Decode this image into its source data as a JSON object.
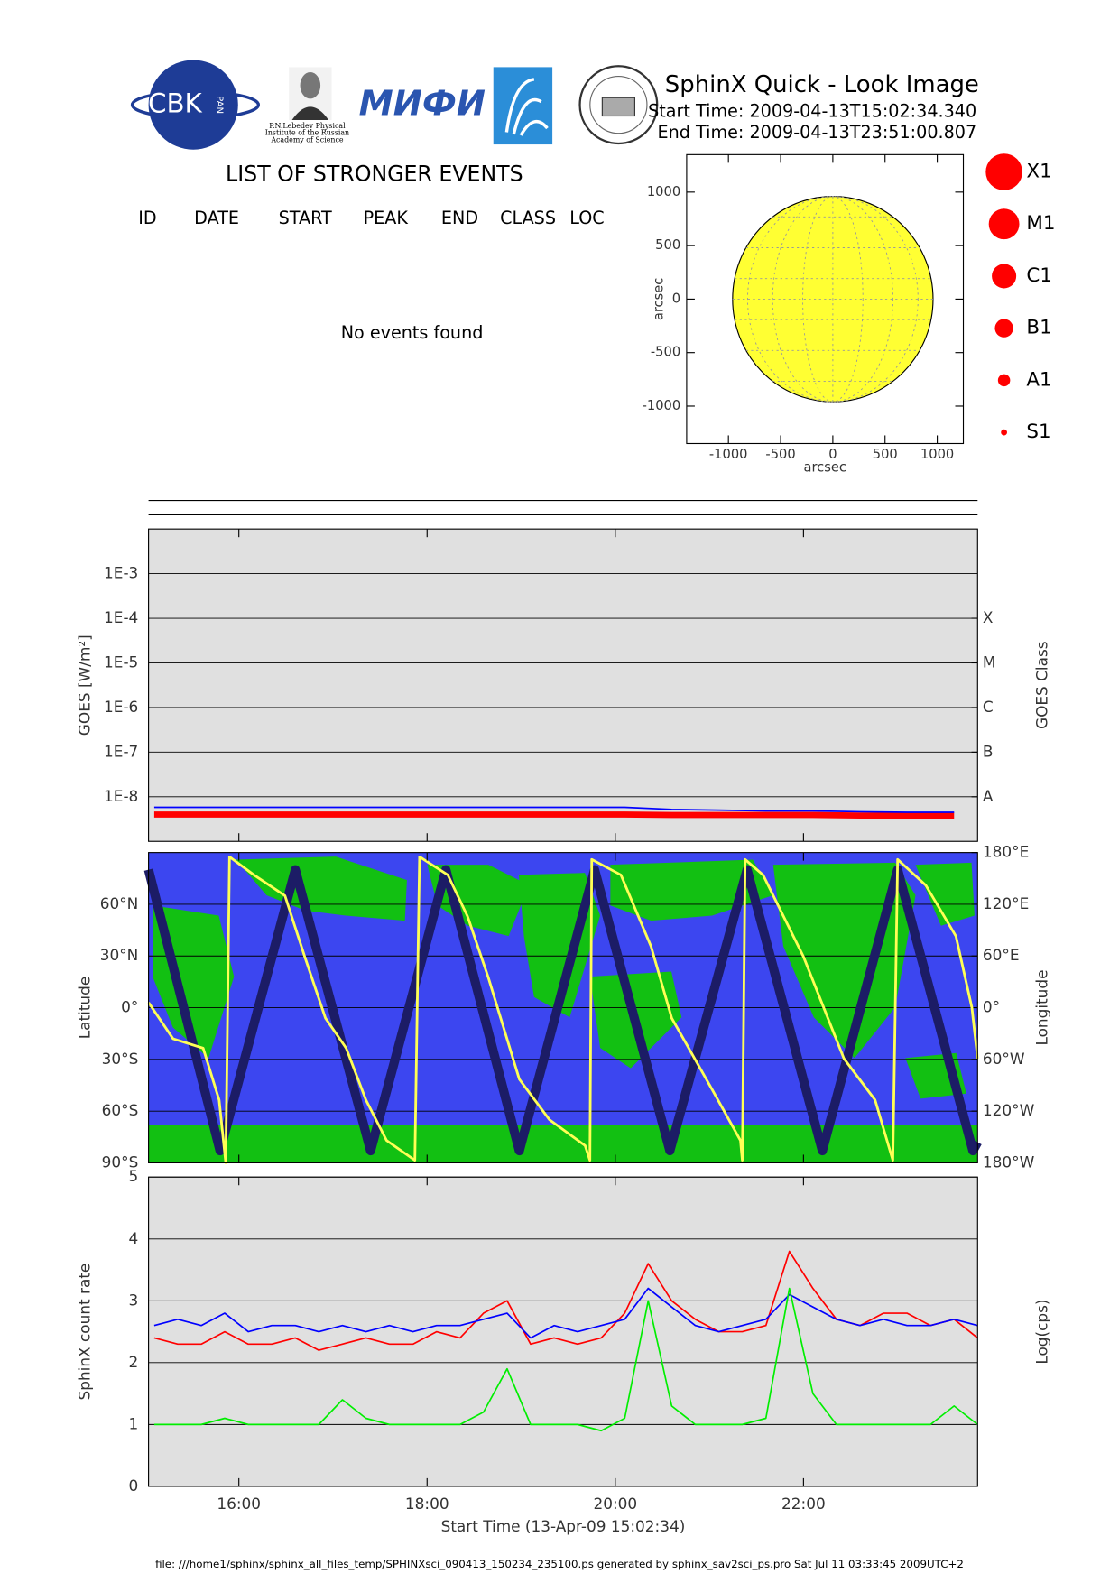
{
  "header": {
    "title": "SphinX Quick - Look Image",
    "start_time": "Start Time: 2009-04-13T15:02:34.340",
    "end_time": "End Time: 2009-04-13T23:51:00.807"
  },
  "logos": {
    "cbk": "CBK",
    "pan": "PAN",
    "lebedev": [
      "P.N.Lebedev Physical",
      "Institute of the Russian",
      "Academy of Science"
    ],
    "mephi": "МИФИ"
  },
  "events": {
    "title": "LIST OF STRONGER EVENTS",
    "columns": [
      "ID",
      "DATE",
      "START",
      "PEAK",
      "END",
      "CLASS",
      "LOC"
    ],
    "message": "No events found"
  },
  "class_legend": [
    "X1",
    "M1",
    "C1",
    "B1",
    "A1",
    "S1"
  ],
  "footer": "file: ///home1/sphinx/sphinx_all_files_temp/SPHINXsci_090413_150234_235100.ps generated by sphinx_sav2sci_ps.pro Sat Jul 11 03:33:45 2009UTC+2",
  "chart_data": [
    {
      "type": "disk",
      "xlabel": "arcsec",
      "ylabel": "arcsec",
      "xlim": [
        -1400,
        1250
      ],
      "ylim": [
        -1350,
        1350
      ],
      "xticks": [
        -1000,
        -500,
        0,
        500,
        1000
      ],
      "yticks": [
        -1000,
        -500,
        0,
        500,
        1000
      ],
      "radius": 960,
      "color": "#ffff33",
      "grid": false
    },
    {
      "type": "line",
      "ylabel": "GOES [W/m²]",
      "y2label": "GOES Class",
      "ylog": true,
      "grid": true,
      "xlim": [
        15.04,
        23.85
      ],
      "ylim": [
        1e-09,
        0.01
      ],
      "yticks": [
        {
          "value": 1e-08,
          "label": "1E-8"
        },
        {
          "value": 1e-07,
          "label": "1E-7"
        },
        {
          "value": 1e-06,
          "label": "1E-6"
        },
        {
          "value": 1e-05,
          "label": "1E-5"
        },
        {
          "value": 0.0001,
          "label": "1E-4"
        },
        {
          "value": 0.001,
          "label": "1E-3"
        }
      ],
      "y2ticks": [
        {
          "value": 1e-08,
          "label": "A"
        },
        {
          "value": 1e-07,
          "label": "B"
        },
        {
          "value": 1e-06,
          "label": "C"
        },
        {
          "value": 1e-05,
          "label": "M"
        },
        {
          "value": 0.0001,
          "label": "X"
        }
      ],
      "x": [
        15.1,
        15.6,
        16.1,
        16.6,
        17.1,
        17.6,
        18.1,
        18.6,
        19.1,
        19.6,
        20.1,
        20.6,
        21.1,
        21.6,
        22.1,
        22.6,
        23.1,
        23.6
      ],
      "series": [
        {
          "color": "#ff0000",
          "values": [
            4e-09,
            4e-09,
            4e-09,
            4e-09,
            4e-09,
            4e-09,
            4e-09,
            4e-09,
            4e-09,
            4e-09,
            4e-09,
            3.9e-09,
            3.9e-09,
            3.9e-09,
            3.9e-09,
            3.8e-09,
            3.8e-09,
            3.8e-09
          ]
        },
        {
          "color": "#0000ff",
          "values": [
            5.8e-09,
            5.8e-09,
            5.8e-09,
            5.8e-09,
            5.8e-09,
            5.8e-09,
            5.8e-09,
            5.8e-09,
            5.8e-09,
            5.8e-09,
            5.8e-09,
            5.2e-09,
            5e-09,
            4.8e-09,
            4.8e-09,
            4.6e-09,
            4.5e-09,
            4.5e-09
          ]
        }
      ]
    },
    {
      "type": "track",
      "ylabel": "Latitude",
      "y2label": "Longitude",
      "grid": true,
      "xlim": [
        15.04,
        23.85
      ],
      "ylim": [
        -90,
        90
      ],
      "y2lim": [
        -180,
        180
      ],
      "yticks": [
        {
          "value": -90,
          "label": "90°S"
        },
        {
          "value": -60,
          "label": "60°S"
        },
        {
          "value": -30,
          "label": "30°S"
        },
        {
          "value": 0,
          "label": "0°"
        },
        {
          "value": 30,
          "label": "30°N"
        },
        {
          "value": 60,
          "label": "60°N"
        }
      ],
      "y2ticks": [
        {
          "value": -180,
          "label": "180°W"
        },
        {
          "value": -120,
          "label": "120°W"
        },
        {
          "value": -60,
          "label": "60°W"
        },
        {
          "value": 0,
          "label": "0°"
        },
        {
          "value": 60,
          "label": "60°E"
        },
        {
          "value": 120,
          "label": "120°E"
        },
        {
          "value": 180,
          "label": "180°E"
        }
      ],
      "series": [
        {
          "color": "#1c1c66",
          "x": [
            15.04,
            15.8,
            16.6,
            17.4,
            18.2,
            18.98,
            19.78,
            20.58,
            21.4,
            22.2,
            23.0,
            23.8,
            23.85
          ],
          "values": [
            80,
            -83,
            80,
            -83,
            80,
            -83,
            80,
            -83,
            80,
            -83,
            80,
            -83,
            -78
          ]
        },
        {
          "color": "#ffff55",
          "axis": "y2",
          "x": [
            15.04,
            15.3,
            15.62,
            15.79,
            15.86,
            15.9,
            16.16,
            16.49,
            16.7,
            16.92,
            17.14,
            17.35,
            17.57,
            17.87,
            17.92,
            18.22,
            18.43,
            18.65,
            18.98,
            19.3,
            19.68,
            19.73,
            19.75,
            20.06,
            20.38,
            20.6,
            21.03,
            21.33,
            21.35,
            21.38,
            21.57,
            22.0,
            22.43,
            22.76,
            22.95,
            23.0,
            23.3,
            23.62,
            23.79,
            23.85
          ],
          "values": [
            6,
            -36,
            -47,
            -107,
            -180,
            175,
            154,
            130,
            59,
            -12,
            -47,
            -107,
            -154,
            -177,
            175,
            154,
            106,
            35,
            -83,
            -130,
            -160,
            -177,
            172,
            154,
            71,
            -12,
            -95,
            -154,
            -177,
            172,
            154,
            59,
            -59,
            -107,
            -177,
            172,
            142,
            83,
            0,
            -59
          ]
        }
      ]
    },
    {
      "type": "line",
      "xlabel": "Start Time (13-Apr-09 15:02:34)",
      "ylabel": "SphinX count rate",
      "y2label": "Log(cps)",
      "grid": true,
      "xlim": [
        15.04,
        23.85
      ],
      "ylim": [
        0,
        5
      ],
      "yticks": [
        0,
        1,
        2,
        3,
        4,
        5
      ],
      "xticks": [
        {
          "value": 16,
          "label": "16:00"
        },
        {
          "value": 18,
          "label": "18:00"
        },
        {
          "value": 20,
          "label": "20:00"
        },
        {
          "value": 22,
          "label": "22:00"
        }
      ],
      "x": [
        15.1,
        15.35,
        15.6,
        15.85,
        16.1,
        16.35,
        16.6,
        16.85,
        17.1,
        17.35,
        17.6,
        17.85,
        18.1,
        18.35,
        18.6,
        18.85,
        19.1,
        19.35,
        19.6,
        19.85,
        20.1,
        20.35,
        20.6,
        20.85,
        21.1,
        21.35,
        21.6,
        21.85,
        22.1,
        22.35,
        22.6,
        22.85,
        23.1,
        23.35,
        23.6,
        23.85
      ],
      "series": [
        {
          "color": "#ff0000",
          "values": [
            2.4,
            2.3,
            2.3,
            2.5,
            2.3,
            2.3,
            2.4,
            2.2,
            2.3,
            2.4,
            2.3,
            2.3,
            2.5,
            2.4,
            2.8,
            3.0,
            2.3,
            2.4,
            2.3,
            2.4,
            2.8,
            3.6,
            3.0,
            2.7,
            2.5,
            2.5,
            2.6,
            3.8,
            3.2,
            2.7,
            2.6,
            2.8,
            2.8,
            2.6,
            2.7,
            2.4
          ]
        },
        {
          "color": "#0000ff",
          "values": [
            2.6,
            2.7,
            2.6,
            2.8,
            2.5,
            2.6,
            2.6,
            2.5,
            2.6,
            2.5,
            2.6,
            2.5,
            2.6,
            2.6,
            2.7,
            2.8,
            2.4,
            2.6,
            2.5,
            2.6,
            2.7,
            3.2,
            2.9,
            2.6,
            2.5,
            2.6,
            2.7,
            3.1,
            2.9,
            2.7,
            2.6,
            2.7,
            2.6,
            2.6,
            2.7,
            2.6
          ]
        },
        {
          "color": "#00ee00",
          "values": [
            1.0,
            1.0,
            1.0,
            1.1,
            1.0,
            1.0,
            1.0,
            1.0,
            1.4,
            1.1,
            1.0,
            1.0,
            1.0,
            1.0,
            1.2,
            1.9,
            1.0,
            1.0,
            1.0,
            0.9,
            1.1,
            3.0,
            1.3,
            1.0,
            1.0,
            1.0,
            1.1,
            3.2,
            1.5,
            1.0,
            1.0,
            1.0,
            1.0,
            1.0,
            1.3,
            1.0
          ]
        }
      ]
    }
  ]
}
